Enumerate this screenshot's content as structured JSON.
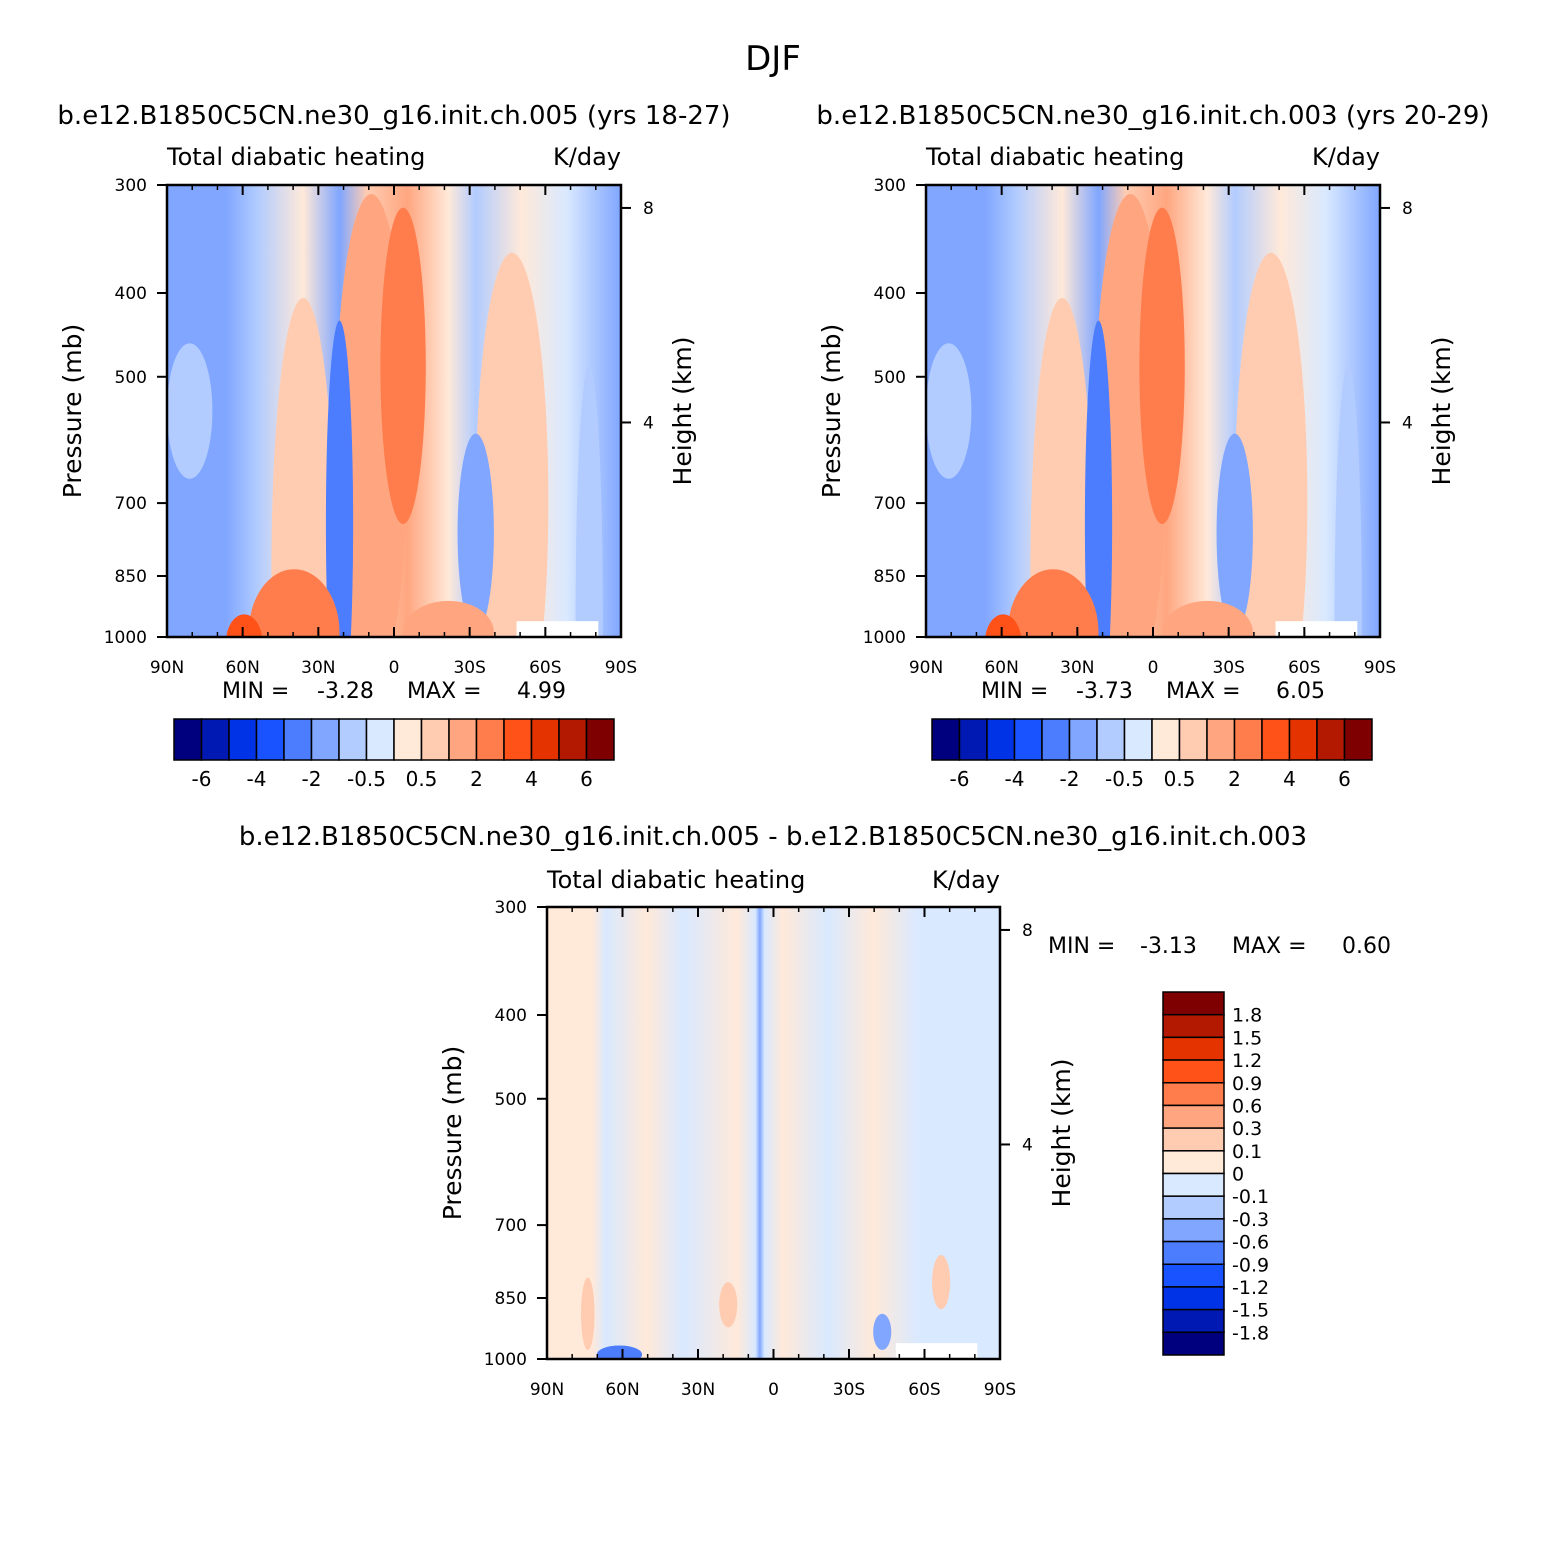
{
  "page_title": "DJF",
  "colors": {
    "full_scale": [
      "#00007f",
      "#0019b2",
      "#0033e5",
      "#1952ff",
      "#4c7dff",
      "#80a6ff",
      "#b2ccff",
      "#d9e9ff",
      "#ffe9d9",
      "#ffccb2",
      "#ffa680",
      "#ff7d4c",
      "#ff5219",
      "#e53300",
      "#b21900",
      "#7f0000"
    ],
    "diff_scale": [
      "#00007f",
      "#0019b2",
      "#0033e5",
      "#1952ff",
      "#4c7dff",
      "#80a6ff",
      "#b2ccff",
      "#d9e9ff",
      "#ffe9d9",
      "#ffccb2",
      "#ffa680",
      "#ff7d4c",
      "#ff5219",
      "#e53300",
      "#b21900",
      "#7f0000"
    ]
  },
  "chart_data": [
    {
      "type": "heatmap",
      "title": "b.e12.B1850C5CN.ne30_g16.init.ch.005 (yrs 18-27)",
      "subtitle_left": "Total diabatic heating",
      "subtitle_right": "K/day",
      "xlabel": "",
      "ylabel": "Pressure (mb)",
      "ylabel_right": "Height (km)",
      "x_ticks": [
        "90N",
        "60N",
        "30N",
        "0",
        "30S",
        "60S",
        "90S"
      ],
      "y_ticks": [
        "300",
        "400",
        "500",
        "700",
        "850",
        "1000"
      ],
      "y_right_ticks": [
        "8",
        "4"
      ],
      "min_label": "MIN =",
      "min_value": "-3.28",
      "max_label": "MAX =",
      "max_value": "4.99",
      "colorbar_labels": [
        "-6",
        "-4",
        "-2",
        "-0.5",
        "0.5",
        "2",
        "4",
        "6"
      ]
    },
    {
      "type": "heatmap",
      "title": "b.e12.B1850C5CN.ne30_g16.init.ch.003 (yrs 20-29)",
      "subtitle_left": "Total diabatic heating",
      "subtitle_right": "K/day",
      "xlabel": "",
      "ylabel": "Pressure (mb)",
      "ylabel_right": "Height (km)",
      "x_ticks": [
        "90N",
        "60N",
        "30N",
        "0",
        "30S",
        "60S",
        "90S"
      ],
      "y_ticks": [
        "300",
        "400",
        "500",
        "700",
        "850",
        "1000"
      ],
      "y_right_ticks": [
        "8",
        "4"
      ],
      "min_label": "MIN =",
      "min_value": "-3.73",
      "max_label": "MAX =",
      "max_value": "6.05",
      "colorbar_labels": [
        "-6",
        "-4",
        "-2",
        "-0.5",
        "0.5",
        "2",
        "4",
        "6"
      ]
    },
    {
      "type": "heatmap",
      "title": "b.e12.B1850C5CN.ne30_g16.init.ch.005 - b.e12.B1850C5CN.ne30_g16.init.ch.003",
      "subtitle_left": "Total diabatic heating",
      "subtitle_right": "K/day",
      "xlabel": "",
      "ylabel": "Pressure (mb)",
      "ylabel_right": "Height (km)",
      "x_ticks": [
        "90N",
        "60N",
        "30N",
        "0",
        "30S",
        "60S",
        "90S"
      ],
      "y_ticks": [
        "300",
        "400",
        "500",
        "700",
        "850",
        "1000"
      ],
      "y_right_ticks": [
        "8",
        "4"
      ],
      "min_label": "MIN =",
      "min_value": "-3.13",
      "max_label": "MAX =",
      "max_value": "0.60",
      "colorbar_labels": [
        "1.8",
        "1.5",
        "1.2",
        "0.9",
        "0.6",
        "0.3",
        "0.1",
        "0",
        "-0.1",
        "-0.3",
        "-0.6",
        "-0.9",
        "-1.2",
        "-1.5",
        "-1.8"
      ]
    }
  ]
}
